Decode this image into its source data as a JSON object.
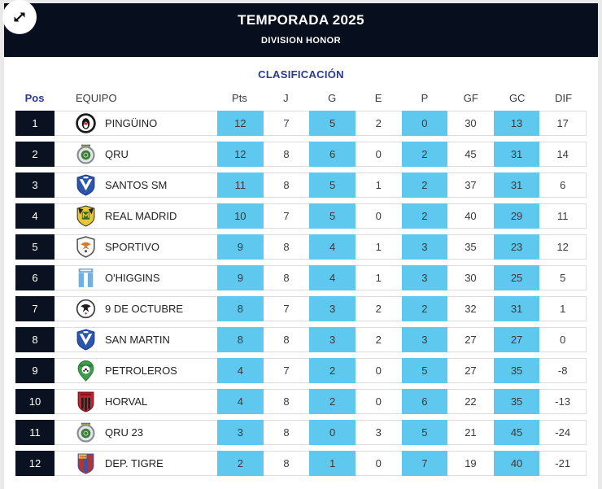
{
  "header": {
    "title": "TEMPORADA 2025",
    "subtitle": "DIVISION HONOR",
    "expand_icon": "expand-icon"
  },
  "section_title": "CLASIFICACIÓN",
  "colors": {
    "header_bg": "#070e1d",
    "pos_badge_bg": "#0a1120",
    "accent_blue": "#5ec8ef",
    "navy": "#2b3990"
  },
  "table": {
    "columns": [
      "Pos",
      "EQUIPO",
      "Pts",
      "J",
      "G",
      "E",
      "P",
      "GF",
      "GC",
      "DIF"
    ],
    "highlighted_columns": [
      "Pts",
      "G",
      "P",
      "GC"
    ],
    "stat_keys": [
      "pts",
      "j",
      "g",
      "e",
      "p",
      "gf",
      "gc",
      "dif"
    ],
    "rows": [
      {
        "pos": "1",
        "team": "PINGÜINO",
        "logo": "pinguino-crest",
        "stats": [
          "12",
          "7",
          "5",
          "2",
          "0",
          "30",
          "13",
          "17"
        ]
      },
      {
        "pos": "2",
        "team": "QRU",
        "logo": "qru-crest",
        "stats": [
          "12",
          "8",
          "6",
          "0",
          "2",
          "45",
          "31",
          "14"
        ]
      },
      {
        "pos": "3",
        "team": "SANTOS SM",
        "logo": "santos-sm-crest",
        "stats": [
          "11",
          "8",
          "5",
          "1",
          "2",
          "37",
          "31",
          "6"
        ]
      },
      {
        "pos": "4",
        "team": "REAL MADRID",
        "logo": "real-madrid-crest",
        "stats": [
          "10",
          "7",
          "5",
          "0",
          "2",
          "40",
          "29",
          "11"
        ]
      },
      {
        "pos": "5",
        "team": "SPORTIVO",
        "logo": "sportivo-crest",
        "stats": [
          "9",
          "8",
          "4",
          "1",
          "3",
          "35",
          "23",
          "12"
        ]
      },
      {
        "pos": "6",
        "team": "O'HIGGINS",
        "logo": "ohiggins-crest",
        "stats": [
          "9",
          "8",
          "4",
          "1",
          "3",
          "30",
          "25",
          "5"
        ]
      },
      {
        "pos": "7",
        "team": "9 DE OCTUBRE",
        "logo": "nueve-octubre-crest",
        "stats": [
          "8",
          "7",
          "3",
          "2",
          "2",
          "32",
          "31",
          "1"
        ]
      },
      {
        "pos": "8",
        "team": "SAN MARTIN",
        "logo": "san-martin-crest",
        "stats": [
          "8",
          "8",
          "3",
          "2",
          "3",
          "27",
          "27",
          "0"
        ]
      },
      {
        "pos": "9",
        "team": "PETROLEROS",
        "logo": "petroleros-crest",
        "stats": [
          "4",
          "7",
          "2",
          "0",
          "5",
          "27",
          "35",
          "-8"
        ]
      },
      {
        "pos": "10",
        "team": "HORVAL",
        "logo": "horval-crest",
        "stats": [
          "4",
          "8",
          "2",
          "0",
          "6",
          "22",
          "35",
          "-13"
        ]
      },
      {
        "pos": "11",
        "team": "QRU 23",
        "logo": "qru-23-crest",
        "stats": [
          "3",
          "8",
          "0",
          "3",
          "5",
          "21",
          "45",
          "-24"
        ]
      },
      {
        "pos": "12",
        "team": "DEP. TIGRE",
        "logo": "dep-tigre-crest",
        "stats": [
          "2",
          "8",
          "1",
          "0",
          "7",
          "19",
          "40",
          "-21"
        ]
      }
    ]
  }
}
